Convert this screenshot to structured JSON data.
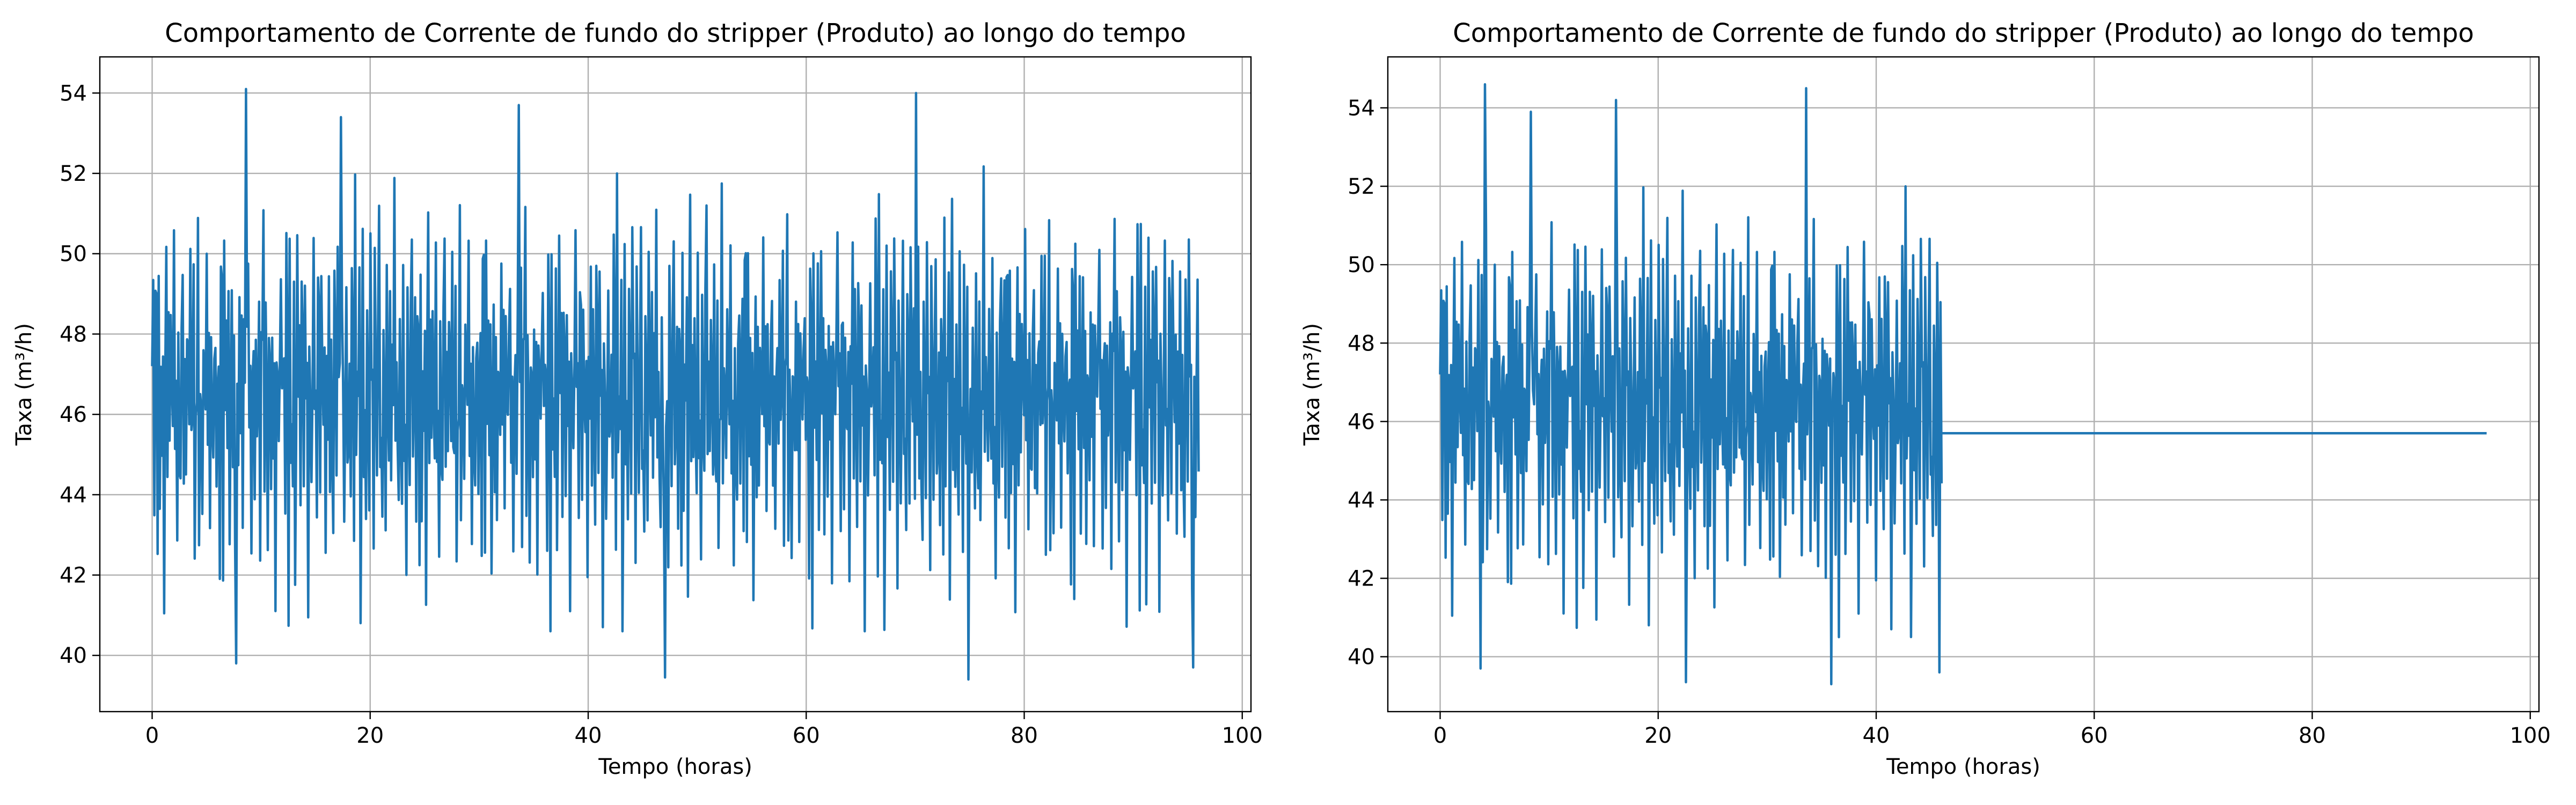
{
  "chart_data": [
    {
      "type": "line",
      "title": "Comportamento de Corrente de fundo do stripper (Produto) ao longo do tempo",
      "xlabel": "Tempo (horas)",
      "ylabel": "Taxa (m³/h)",
      "xlim": [
        -4.8,
        100.8
      ],
      "ylim": [
        38.6,
        54.9
      ],
      "xticks": [
        0,
        20,
        40,
        60,
        80,
        100
      ],
      "yticks": [
        40,
        42,
        44,
        46,
        48,
        50,
        52,
        54
      ],
      "grid": true,
      "legend": "none",
      "color": "#1f77b4",
      "series": [
        {
          "x_start": 0,
          "x_end": 96,
          "points": 960,
          "mean": 46.5,
          "min": 39.4,
          "max": 54.1,
          "y": [
            46.5,
            47.8,
            43.2,
            49.6,
            48.5,
            42.0,
            50.5,
            44.8,
            47.1,
            45.3,
            48.9,
            41.6,
            46.2,
            50.2,
            45.0,
            47.7,
            43.9,
            48.3,
            46.8,
            44.5,
            49.8,
            45.9,
            47.3,
            42.4,
            48.6,
            46.1,
            44.9,
            47.9,
            50.3,
            45.2,
            46.7,
            43.6,
            48.1,
            47.5,
            44.2,
            49.3,
            46.0,
            45.6,
            48.8,
            42.9,
            47.2,
            46.4,
            50.9,
            44.1,
            47.6,
            45.8,
            43.4,
            48.4,
            46.9,
            44.7,
            49.5,
            45.4,
            47.0,
            41.9,
            48.2,
            46.3,
            44.4,
            47.4,
            49.1,
            45.1
          ]
        }
      ]
    },
    {
      "type": "line",
      "title": "Comportamento de Corrente de fundo do stripper (Produto) ao longo do tempo",
      "xlabel": "Tempo (horas)",
      "ylabel": "Taxa (m³/h)",
      "xlim": [
        -4.8,
        100.8
      ],
      "ylim": [
        38.6,
        55.3
      ],
      "xticks": [
        0,
        20,
        40,
        60,
        80,
        100
      ],
      "yticks": [
        40,
        42,
        44,
        46,
        48,
        50,
        52,
        54
      ],
      "grid": true,
      "legend": "none",
      "color": "#1f77b4",
      "series": [
        {
          "x_start": 0,
          "x_end": 46,
          "points": 460,
          "mean": 46.3,
          "min": 39.3,
          "max": 54.6,
          "y": [
            46.5,
            47.8,
            43.2,
            49.6,
            48.5,
            42.0,
            50.5,
            44.8,
            47.1,
            45.3,
            48.9,
            41.6,
            46.2,
            50.2,
            45.0,
            47.7,
            43.9,
            48.3,
            46.8,
            44.5,
            49.8,
            45.9,
            47.3,
            42.4,
            48.6,
            46.1,
            44.9,
            47.9,
            50.3,
            45.2,
            46.7,
            43.6,
            48.1,
            47.5,
            44.2,
            49.3,
            46.0,
            45.6,
            48.8,
            42.9,
            47.2,
            46.4,
            50.9,
            44.1,
            47.6,
            45.8,
            43.4,
            48.4,
            46.9,
            44.7,
            49.5,
            45.4,
            47.0,
            41.9,
            48.2,
            46.3,
            44.4,
            47.4,
            49.1,
            45.1
          ]
        },
        {
          "x": [
            46,
            96
          ],
          "y": [
            45.7,
            45.7
          ]
        }
      ]
    }
  ]
}
